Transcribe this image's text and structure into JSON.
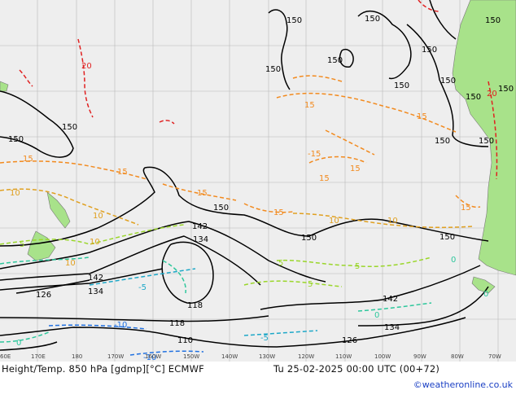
{
  "map": {
    "title": "Height/Temp. 850 hPa [gdmp][°C] ECMWF",
    "valid_time": "Tu 25-02-2025 00:00 UTC (00+72)",
    "credit": "©weatheronline.co.uk",
    "longitude_labels": [
      "60E",
      "170E",
      "180",
      "170W",
      "160W",
      "150W",
      "140W",
      "130W",
      "120W",
      "110W",
      "100W",
      "90W",
      "80W",
      "70W"
    ],
    "height_labels": [
      "150",
      "150",
      "150",
      "150",
      "150",
      "150",
      "150",
      "150",
      "150",
      "150",
      "150",
      "150",
      "150",
      "150",
      "150",
      "150",
      "150",
      "142",
      "134",
      "142",
      "134",
      "126",
      "118",
      "118",
      "110",
      "126",
      "142",
      "134"
    ],
    "temp_labels": [
      "20",
      "20",
      "15",
      "15",
      "15",
      "15",
      "15",
      "15",
      "15",
      "15",
      "15",
      "10",
      "10",
      "10",
      "10",
      "10",
      "5",
      "5",
      "5",
      "5",
      "0",
      "0",
      "0",
      "-5",
      "-5",
      "-10",
      "-10",
      "-15",
      "10",
      "0"
    ],
    "colors": {
      "background": "#eeeeee",
      "land": "#a8e28a",
      "grid": "#b8b8b8",
      "height_contour": "#000000",
      "temp_20": "#e02020",
      "temp_15": "#f28a1e",
      "temp_10": "#e0a020",
      "temp_5": "#9ad62a",
      "temp_0": "#2ec79c",
      "temp_minus5": "#1ea8c8",
      "temp_minus10": "#2070e0",
      "credit": "#1a3fc4"
    }
  }
}
